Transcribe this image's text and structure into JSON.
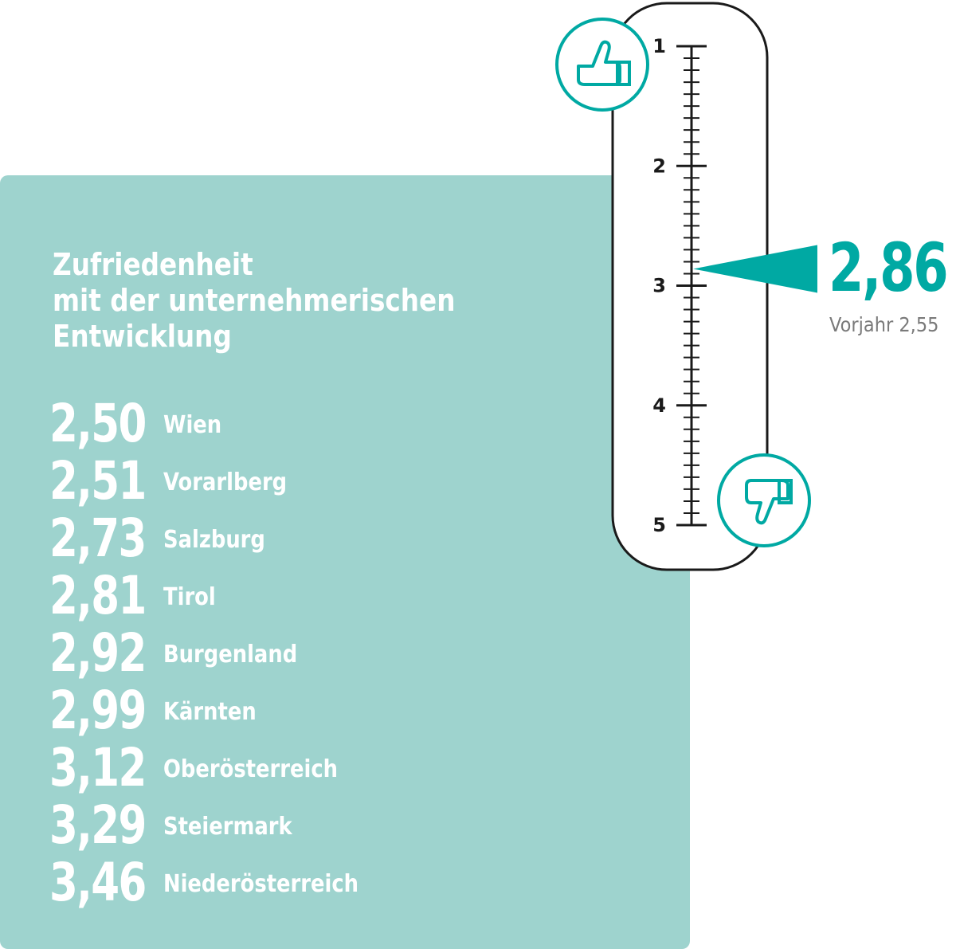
{
  "chart_data": {
    "type": "gauge",
    "title": [
      "Zufriedenheit",
      "mit der unternehmerischen",
      "Entwicklung"
    ],
    "scale": {
      "min": 1,
      "max": 5,
      "ticks": [
        "1",
        "2",
        "3",
        "4",
        "5"
      ],
      "minor_step": 0.1
    },
    "current_value": 2.86,
    "current_label": "2,86",
    "previous_label": "Vorjahr 2,55",
    "previous_value": 2.55,
    "regions": [
      {
        "value": 2.5,
        "label": "2,50",
        "name": "Wien"
      },
      {
        "value": 2.51,
        "label": "2,51",
        "name": "Vorarlberg"
      },
      {
        "value": 2.73,
        "label": "2,73",
        "name": "Salzburg"
      },
      {
        "value": 2.81,
        "label": "2,81",
        "name": "Tirol"
      },
      {
        "value": 2.92,
        "label": "2,92",
        "name": "Burgenland"
      },
      {
        "value": 2.99,
        "label": "2,99",
        "name": "Kärnten"
      },
      {
        "value": 3.12,
        "label": "3,12",
        "name": "Oberösterreich"
      },
      {
        "value": 3.29,
        "label": "3,29",
        "name": "Steiermark"
      },
      {
        "value": 3.46,
        "label": "3,46",
        "name": "Niederösterreich"
      }
    ],
    "icons": {
      "top": "thumbs-up-icon",
      "bottom": "thumbs-down-icon"
    },
    "colors": {
      "panel": "#9ed3ce",
      "accent": "#00a9a3",
      "text_light": "#ffffff",
      "muted": "#7a7a7a",
      "scale": "#1a1a1a"
    }
  }
}
